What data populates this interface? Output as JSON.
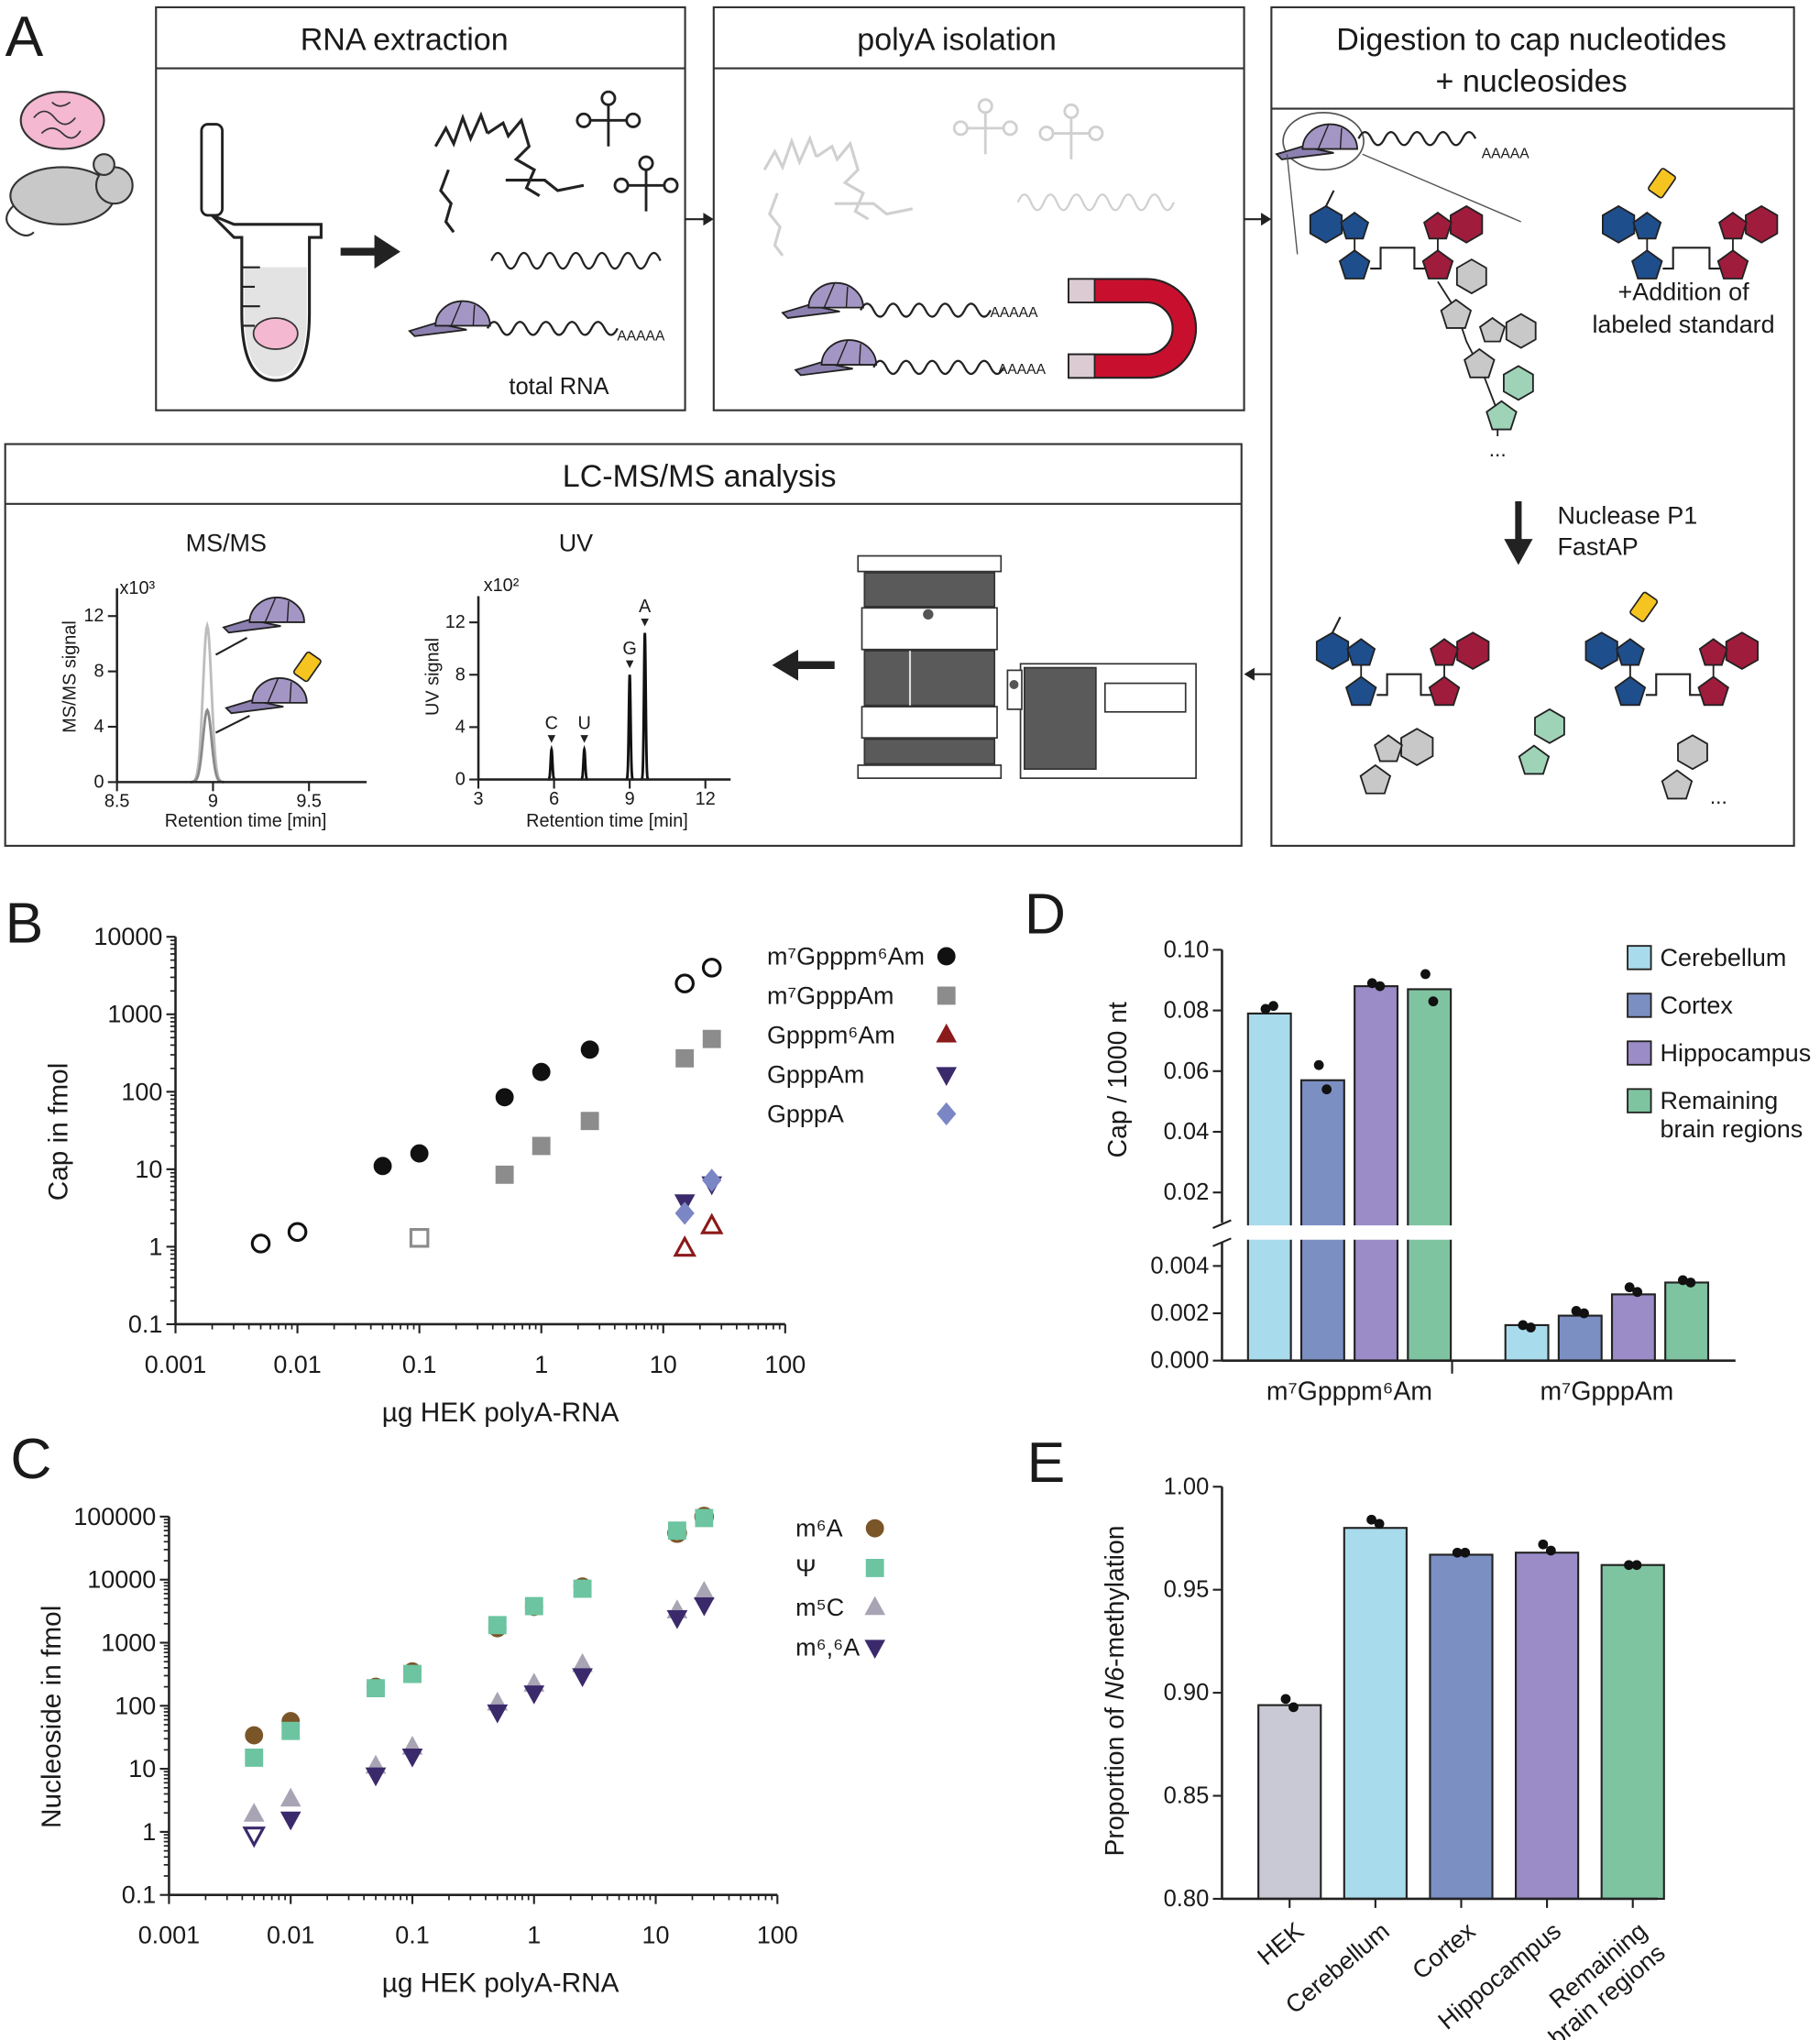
{
  "panel_a": {
    "label": "A",
    "steps": [
      {
        "title": "RNA extraction",
        "caption": "total RNA"
      },
      {
        "title": "polyA isolation"
      },
      {
        "title": "Digestion to cap nucleotides",
        "subtitle": "+ nucleosides",
        "note": [
          "+Addition of",
          "labeled standard"
        ],
        "enzymes": [
          "Nuclease P1",
          "FastAP"
        ]
      },
      {
        "title": "LC-MS/MS analysis"
      }
    ],
    "tail": "AAAAA",
    "ellipsis": "..."
  },
  "chart_data": [
    {
      "type": "peaks",
      "title": "MS/MS",
      "multiplier": "x10³",
      "ylabel": "MS/MS signal",
      "xlabel": "Retention time [min]",
      "xlim": [
        8.5,
        9.8
      ],
      "xticks": [
        8.5,
        9,
        9.5
      ],
      "ylim": [
        0,
        14
      ],
      "yticks": [
        0,
        4,
        8,
        12
      ],
      "series": [
        {
          "color": "#bdbdbd",
          "x": [
            8.97
          ],
          "values": [
            11.3
          ]
        },
        {
          "color": "#8a8a8a",
          "x": [
            8.97
          ],
          "values": [
            5.2
          ]
        }
      ]
    },
    {
      "type": "peaks",
      "title": "UV",
      "multiplier": "x10²",
      "ylabel": "UV signal",
      "xlabel": "Retention time [min]",
      "xlim": [
        3,
        13
      ],
      "xticks": [
        3,
        6,
        9,
        12
      ],
      "ylim": [
        0,
        14
      ],
      "yticks": [
        0,
        4,
        8,
        12
      ],
      "series": [
        {
          "color": "#111111",
          "x": [
            5.9,
            7.2,
            9.0,
            9.6
          ],
          "values": [
            2.3,
            2.3,
            8.0,
            11.2
          ],
          "labels": [
            "C",
            "U",
            "G",
            "A"
          ]
        }
      ]
    },
    {
      "type": "scatter",
      "label": "B",
      "xlabel": "µg HEK polyA-RNA",
      "ylabel": "Cap in fmol",
      "log_x": true,
      "log_y": true,
      "xlim": [
        0.001,
        100
      ],
      "xticks": [
        0.001,
        0.01,
        0.1,
        1,
        10,
        100
      ],
      "ylim": [
        0.1,
        10000
      ],
      "yticks": [
        0.1,
        1,
        10,
        100,
        1000,
        10000
      ],
      "series": [
        {
          "name": "m⁷Gpppm⁶Am",
          "color": "#111111",
          "marker": "circle",
          "x": [
            0.005,
            0.01,
            0.05,
            0.1,
            0.5,
            1,
            2.5,
            15,
            25
          ],
          "values": [
            1.1,
            1.55,
            11,
            16,
            85,
            180,
            350,
            2500,
            4000
          ],
          "filled": [
            false,
            false,
            true,
            true,
            true,
            true,
            true,
            false,
            false
          ]
        },
        {
          "name": "m⁷GpppAm",
          "color": "#8c8c8c",
          "marker": "square",
          "x": [
            0.1,
            0.5,
            1,
            2.5,
            15,
            25
          ],
          "values": [
            1.3,
            8.5,
            20,
            42,
            270,
            480
          ],
          "filled": [
            false,
            true,
            true,
            true,
            true,
            true
          ]
        },
        {
          "name": "Gpppm⁶Am",
          "color": "#8b1a1a",
          "marker": "triangle",
          "x": [
            15,
            25
          ],
          "values": [
            0.95,
            1.85
          ],
          "filled": [
            false,
            false
          ]
        },
        {
          "name": "GpppAm",
          "color": "#3b2a6b",
          "marker": "triangle-down",
          "x": [
            15,
            25
          ],
          "values": [
            3.8,
            6.5
          ],
          "filled": [
            true,
            true
          ]
        },
        {
          "name": "GpppA",
          "color": "#7b86c4",
          "marker": "diamond",
          "x": [
            15,
            25
          ],
          "values": [
            2.7,
            7.2
          ],
          "filled": [
            true,
            true
          ]
        }
      ]
    },
    {
      "type": "scatter",
      "label": "C",
      "xlabel": "µg HEK polyA-RNA",
      "ylabel": "Nucleoside in fmol",
      "log_x": true,
      "log_y": true,
      "xlim": [
        0.001,
        100
      ],
      "xticks": [
        0.001,
        0.01,
        0.1,
        1,
        10,
        100
      ],
      "ylim": [
        0.1,
        100000
      ],
      "yticks": [
        0.1,
        1,
        10,
        100,
        1000,
        10000,
        100000
      ],
      "series": [
        {
          "name": "m⁶A",
          "color": "#7a5528",
          "marker": "circle",
          "x": [
            0.005,
            0.01,
            0.05,
            0.1,
            0.5,
            1,
            2.5,
            15,
            25
          ],
          "values": [
            34,
            57,
            200,
            350,
            1700,
            3700,
            7800,
            55000,
            100000
          ],
          "filled": [
            true,
            true,
            true,
            true,
            true,
            true,
            true,
            false,
            false
          ]
        },
        {
          "name": "Ψ",
          "color": "#6cc4a0",
          "marker": "square",
          "x": [
            0.005,
            0.01,
            0.05,
            0.1,
            0.5,
            1,
            2.5,
            15,
            25
          ],
          "values": [
            15,
            40,
            190,
            320,
            1900,
            3800,
            7200,
            60000,
            95000
          ],
          "filled": [
            true,
            true,
            true,
            true,
            true,
            true,
            true,
            true,
            true
          ]
        },
        {
          "name": "m⁵C",
          "color": "#a9a4b3",
          "marker": "triangle",
          "x": [
            0.005,
            0.01,
            0.05,
            0.1,
            0.5,
            1,
            2.5,
            15,
            25
          ],
          "values": [
            1.9,
            3.3,
            11,
            22,
            110,
            220,
            450,
            3200,
            6300
          ],
          "filled": [
            true,
            true,
            true,
            true,
            true,
            true,
            true,
            true,
            true
          ]
        },
        {
          "name": "m⁶,⁶A",
          "color": "#3b2a6b",
          "marker": "triangle-down",
          "x": [
            0.005,
            0.01,
            0.05,
            0.1,
            0.5,
            1,
            2.5,
            15,
            25
          ],
          "values": [
            0.9,
            1.6,
            8,
            16,
            80,
            160,
            300,
            2500,
            4000
          ],
          "filled": [
            false,
            true,
            true,
            true,
            true,
            true,
            true,
            true,
            true
          ]
        }
      ]
    },
    {
      "type": "broken_bar",
      "label": "D",
      "ylabel": "Cap / 1000 nt",
      "categories": [
        "m⁷Gpppm⁶Am",
        "m⁷GpppAm"
      ],
      "segments": [
        {
          "ylim": [
            0,
            0.005
          ],
          "yticks": [
            {
              "value": 0,
              "label": "0.000"
            },
            0.002,
            0.004
          ]
        },
        {
          "ylim": [
            0.01,
            0.1
          ],
          "yticks": [
            0.02,
            0.04,
            0.06,
            0.08,
            {
              "value": 0.1,
              "label": "0.10"
            }
          ]
        }
      ],
      "series": [
        {
          "name": "Cerebellum",
          "color": "#a8dbeb",
          "values": [
            0.079,
            0.0015
          ],
          "points": [
            [
              0.0805,
              0.0815
            ],
            [
              0.0015,
              0.0014
            ]
          ]
        },
        {
          "name": "Cortex",
          "color": "#7b8fc2",
          "values": [
            0.057,
            0.0019
          ],
          "points": [
            [
              0.062,
              0.054
            ],
            [
              0.0021,
              0.002
            ]
          ]
        },
        {
          "name": "Hippocampus",
          "color": "#9b8cc8",
          "values": [
            0.088,
            0.0028
          ],
          "points": [
            [
              0.089,
              0.088
            ],
            [
              0.0031,
              0.0029
            ]
          ]
        },
        {
          "name": "Remaining\nbrain regions",
          "color": "#7fc4a0",
          "values": [
            0.087,
            0.0033
          ],
          "points": [
            [
              0.092,
              0.083
            ],
            [
              0.0034,
              0.0033
            ]
          ]
        }
      ]
    },
    {
      "type": "bar",
      "label": "E",
      "ylabel": [
        "Proportion of ",
        "N6",
        "-methylation"
      ],
      "categories": [
        "HEK",
        "Cerebellum",
        "Cortex",
        "Hippocampus",
        "Remaining\nbrain regions"
      ],
      "values": [
        0.894,
        0.98,
        0.967,
        0.968,
        0.962
      ],
      "colors": [
        "#c9c9d6",
        "#a8dbeb",
        "#7b8fc2",
        "#9b8cc8",
        "#7fc4a0"
      ],
      "points": [
        [
          0.897,
          0.893
        ],
        [
          0.984,
          0.982
        ],
        [
          0.968,
          0.968
        ],
        [
          0.972,
          0.969
        ],
        [
          0.962,
          0.962
        ]
      ],
      "ylim": [
        0.8,
        1.0
      ],
      "yticks": [
        {
          "value": 0.8,
          "label": "0.80"
        },
        {
          "value": 0.85,
          "label": "0.85"
        },
        {
          "value": 0.9,
          "label": "0.90"
        },
        {
          "value": 0.95,
          "label": "0.95"
        },
        {
          "value": 1.0,
          "label": "1.00"
        }
      ]
    }
  ]
}
